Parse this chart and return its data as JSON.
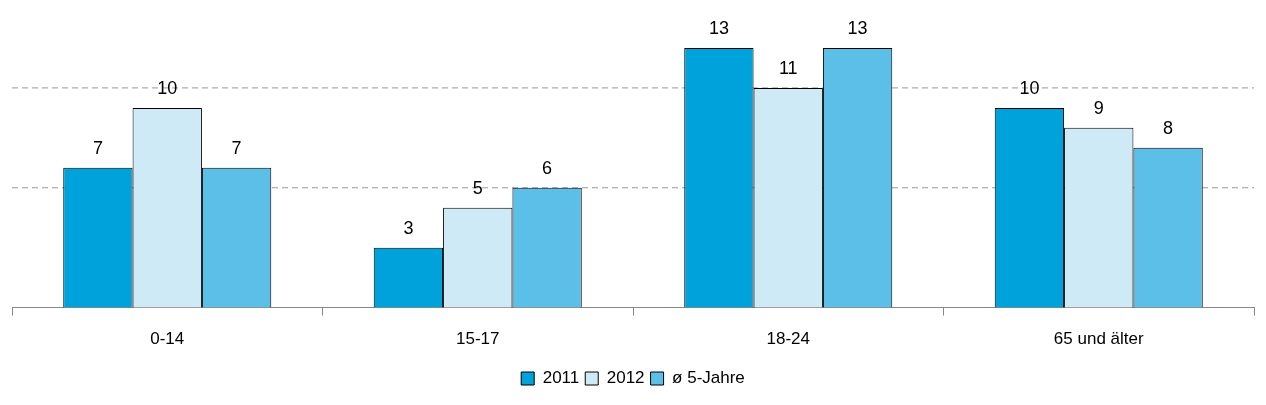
{
  "chart_data": {
    "type": "bar",
    "categories": [
      "0-14",
      "15-17",
      "18-24",
      "65 und älter"
    ],
    "series": [
      {
        "name": "2011",
        "color": "#00a2dc",
        "values": [
          7,
          3,
          13,
          10
        ]
      },
      {
        "name": "2012",
        "color": "#cfeaf7",
        "values": [
          10,
          5,
          11,
          9
        ]
      },
      {
        "name": "ø 5-Jahre",
        "color": "#5bbfe8",
        "values": [
          7,
          6,
          13,
          8
        ]
      }
    ],
    "ref_lines": [
      {
        "axis": "y",
        "value": 6,
        "label": null,
        "color": "#999999",
        "line_style": "dashed"
      },
      {
        "axis": "y",
        "value": 11,
        "label": null,
        "color": "#999999",
        "line_style": "dashed"
      }
    ],
    "tick_labels": "x",
    "data_labels": true,
    "legend": "bottom"
  }
}
